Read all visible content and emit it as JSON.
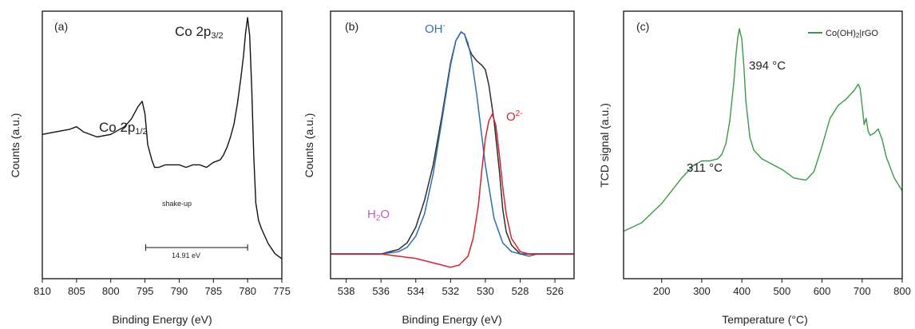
{
  "chart_data": [
    {
      "type": "line",
      "panel_label": "(a)",
      "xlabel": "Binding Energy (eV)",
      "ylabel": "Counts (a.u.)",
      "xlim": [
        810,
        775
      ],
      "xticks": [
        "810",
        "805",
        "800",
        "795",
        "790",
        "785",
        "780",
        "775"
      ],
      "color": "#111111",
      "series": [
        {
          "x": [
            810,
            808,
            806,
            805,
            804,
            802,
            800,
            798,
            797,
            796,
            795.4,
            795,
            794.6,
            794,
            793.6,
            793,
            792,
            790,
            789,
            788,
            787,
            786,
            785,
            784,
            783.5,
            783,
            782.5,
            782,
            781.5,
            781,
            780.6,
            780.3,
            780,
            779.7,
            779.4,
            779.1,
            778.8,
            778.4,
            778,
            777.5,
            777,
            776,
            775
          ],
          "y": [
            0.54,
            0.55,
            0.56,
            0.57,
            0.55,
            0.53,
            0.54,
            0.57,
            0.6,
            0.65,
            0.67,
            0.62,
            0.5,
            0.44,
            0.41,
            0.41,
            0.42,
            0.42,
            0.41,
            0.42,
            0.42,
            0.41,
            0.43,
            0.44,
            0.46,
            0.49,
            0.53,
            0.58,
            0.66,
            0.76,
            0.85,
            0.94,
            1.0,
            0.93,
            0.72,
            0.45,
            0.27,
            0.2,
            0.17,
            0.14,
            0.11,
            0.07,
            0.05
          ]
        }
      ],
      "annotations": [
        {
          "main": "Co 2p",
          "sub": "1/2"
        },
        {
          "main": "Co 2p",
          "sub": "3/2"
        },
        {
          "text": "shake-up"
        },
        {
          "text": "14.91 eV"
        }
      ],
      "bracket": [
        794.9,
        780
      ]
    },
    {
      "type": "line",
      "panel_label": "(b)",
      "xlabel": "Binding Energy (eV)",
      "ylabel": "Counts (a.u.)",
      "xlim": [
        538.9,
        524.9
      ],
      "xticks": [
        "538",
        "536",
        "534",
        "532",
        "530",
        "528",
        "526"
      ],
      "series": [
        {
          "component": "data",
          "color": "#555555",
          "x": [
            538.9,
            538,
            537,
            536,
            535.5,
            535,
            534.5,
            534,
            533.5,
            533,
            532.5,
            532,
            531.7,
            531.4,
            531.2,
            531,
            530.8,
            530.5,
            530.2,
            530,
            529.8,
            529.5,
            529.2,
            529,
            528.8,
            528.5,
            528,
            527.5,
            527,
            526,
            525,
            524.9
          ],
          "y": [
            0.0,
            0.0,
            0.0,
            0.0,
            0.01,
            0.02,
            0.05,
            0.12,
            0.24,
            0.4,
            0.62,
            0.86,
            0.96,
            1.0,
            0.99,
            0.94,
            0.9,
            0.87,
            0.85,
            0.83,
            0.76,
            0.6,
            0.38,
            0.2,
            0.1,
            0.04,
            0.0,
            -0.01,
            0.0,
            0.0,
            0.0,
            0.0
          ]
        },
        {
          "component": "fit",
          "color": "#333333",
          "x": [
            538.9,
            538,
            537,
            536,
            535.5,
            535,
            534.5,
            534,
            533.5,
            533,
            532.5,
            532,
            531.7,
            531.4,
            531.2,
            531,
            530.8,
            530.5,
            530.2,
            530,
            529.8,
            529.5,
            529.2,
            529,
            528.8,
            528.5,
            528,
            527.5,
            527,
            526,
            525,
            524.9
          ],
          "y": [
            0.0,
            0.0,
            0.0,
            0.0,
            0.01,
            0.02,
            0.05,
            0.12,
            0.24,
            0.4,
            0.62,
            0.86,
            0.96,
            1.0,
            0.99,
            0.94,
            0.9,
            0.87,
            0.85,
            0.83,
            0.76,
            0.6,
            0.38,
            0.2,
            0.1,
            0.04,
            0.0,
            0.0,
            0.0,
            0.0,
            0.0,
            0.0
          ]
        },
        {
          "component": "OH-",
          "color": "#2f6db5",
          "x": [
            538.9,
            536,
            535,
            534.5,
            534,
            533.5,
            533,
            532.5,
            532,
            531.7,
            531.4,
            531.2,
            531,
            530.8,
            530.5,
            530,
            529.5,
            529,
            528.5,
            528,
            527,
            524.9
          ],
          "y": [
            0.0,
            0.0,
            0.01,
            0.03,
            0.08,
            0.18,
            0.36,
            0.6,
            0.85,
            0.96,
            1.0,
            0.99,
            0.95,
            0.88,
            0.72,
            0.4,
            0.16,
            0.05,
            0.01,
            0.0,
            0.0,
            0.0
          ]
        },
        {
          "component": "O2-",
          "color": "#d2242a",
          "x": [
            538.9,
            536,
            534,
            533,
            532.5,
            532,
            531.5,
            531,
            530.7,
            530.4,
            530.2,
            530,
            529.8,
            529.6,
            529.4,
            529.2,
            529,
            528.8,
            528.5,
            528,
            527.5,
            527,
            524.9
          ],
          "y": [
            0.0,
            0.0,
            -0.02,
            -0.04,
            -0.05,
            -0.06,
            -0.05,
            -0.01,
            0.07,
            0.22,
            0.38,
            0.52,
            0.6,
            0.63,
            0.58,
            0.45,
            0.3,
            0.18,
            0.07,
            0.01,
            0.0,
            0.0,
            0.0
          ]
        }
      ],
      "annotations": [
        {
          "text": "OH",
          "sup": "-",
          "color": "#2f6db5"
        },
        {
          "text": "O",
          "sup": "2-",
          "color": "#d2242a"
        },
        {
          "text": "H",
          "sub": "2",
          "tail": "O",
          "color": "#c45eb8"
        }
      ]
    },
    {
      "type": "line",
      "panel_label": "(c)",
      "xlabel": "Temperature (°C)",
      "ylabel": "TCD signal (a.u.)",
      "xlim": [
        105,
        800
      ],
      "xticks": [
        "200",
        "300",
        "400",
        "500",
        "600",
        "700",
        "800"
      ],
      "legend": {
        "label_main": "Co(OH)",
        "label_sub": "2",
        "label_tail": "|rGO",
        "position": "top-right"
      },
      "series": [
        {
          "color": "#3a9b47",
          "x": [
            105,
            150,
            200,
            250,
            280,
            300,
            320,
            340,
            350,
            360,
            370,
            380,
            385,
            390,
            394,
            400,
            405,
            410,
            420,
            430,
            440,
            450,
            470,
            500,
            530,
            560,
            580,
            600,
            620,
            640,
            660,
            680,
            690,
            695,
            700,
            705,
            710,
            715,
            720,
            730,
            740,
            750,
            760,
            780,
            800
          ],
          "y": [
            0.05,
            0.09,
            0.18,
            0.3,
            0.36,
            0.38,
            0.38,
            0.39,
            0.41,
            0.46,
            0.57,
            0.75,
            0.87,
            0.96,
            1.0,
            0.95,
            0.83,
            0.66,
            0.49,
            0.43,
            0.41,
            0.39,
            0.37,
            0.34,
            0.3,
            0.29,
            0.33,
            0.45,
            0.58,
            0.64,
            0.67,
            0.71,
            0.74,
            0.72,
            0.64,
            0.55,
            0.58,
            0.52,
            0.5,
            0.51,
            0.53,
            0.48,
            0.4,
            0.3,
            0.24
          ]
        }
      ],
      "annotations": [
        {
          "text": "394 °C"
        },
        {
          "text": "311 °C"
        }
      ]
    }
  ]
}
